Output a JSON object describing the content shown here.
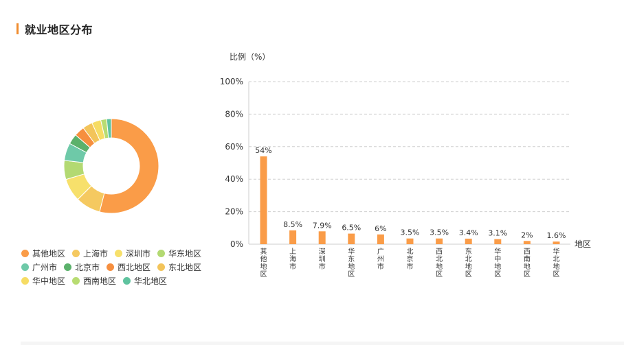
{
  "header": {
    "title": "就业地区分布"
  },
  "chart_data": [
    {
      "type": "pie",
      "variant": "donut",
      "categories": [
        "其他地区",
        "上海市",
        "深圳市",
        "华东地区",
        "广州市",
        "北京市",
        "西北地区",
        "东北地区",
        "华中地区",
        "西南地区",
        "华北地区"
      ],
      "values": [
        54,
        8.5,
        7.9,
        6.5,
        6,
        3.5,
        3.5,
        3.4,
        3.1,
        2,
        1.6
      ],
      "colors": [
        "#fa9c48",
        "#f5c960",
        "#f7e06b",
        "#b3d972",
        "#6ec9a8",
        "#5bb16b",
        "#f68f3f",
        "#f3c45a",
        "#f6dc64",
        "#b8dc72",
        "#5fc39f"
      ],
      "legend_placement": "bottom-left",
      "legend_rows": [
        [
          "其他地区",
          "上海市",
          "深圳市",
          "华东地区"
        ],
        [
          "广州市",
          "北京市",
          "西北地区",
          "东北地区"
        ],
        [
          "华中地区",
          "西南地区",
          "华北地区"
        ]
      ]
    },
    {
      "type": "bar",
      "categories": [
        "其他地区",
        "上海市",
        "深圳市",
        "华东地区",
        "广州市",
        "北京市",
        "西北地区",
        "东北地区",
        "华中地区",
        "西南地区",
        "华北地区"
      ],
      "values": [
        54,
        8.5,
        7.9,
        6.5,
        6,
        3.5,
        3.5,
        3.4,
        3.1,
        2,
        1.6
      ],
      "data_labels": [
        "54%",
        "8.5%",
        "7.9%",
        "6.5%",
        "6%",
        "3.5%",
        "3.5%",
        "3.4%",
        "3.1%",
        "2%",
        "1.6%"
      ],
      "ylabel": "比例（%）",
      "xlabel": "地区",
      "ylim": [
        0,
        100
      ],
      "yticks": [
        "0%",
        "20%",
        "40%",
        "60%",
        "80%",
        "100%"
      ],
      "ytick_values": [
        0,
        20,
        40,
        60,
        80,
        100
      ],
      "grid": true,
      "bar_color": "#fa9c48",
      "tick_label_color": "#7a90a8"
    }
  ]
}
